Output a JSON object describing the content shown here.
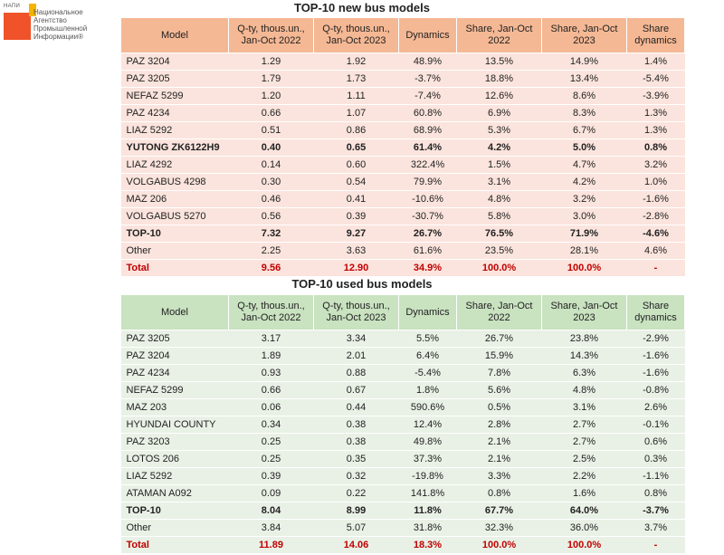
{
  "logo": {
    "small": "НАПИ",
    "lines": [
      "Национальное",
      "Агентство",
      "Промышленной",
      "Информации®"
    ]
  },
  "new_table": {
    "title": "TOP-10 new bus models",
    "headers": [
      "Model",
      "Q-ty, thous.un., Jan-Oct 2022",
      "Q-ty, thous.un., Jan-Oct 2023",
      "Dynamics",
      "Share, Jan-Oct 2022",
      "Share, Jan-Oct 2023",
      "Share dynamics"
    ],
    "rows": [
      {
        "cells": [
          "PAZ 3204",
          "1.29",
          "1.92",
          "48.9%",
          "13.5%",
          "14.9%",
          "1.4%"
        ],
        "style": ""
      },
      {
        "cells": [
          "PAZ 3205",
          "1.79",
          "1.73",
          "-3.7%",
          "18.8%",
          "13.4%",
          "-5.4%"
        ],
        "style": ""
      },
      {
        "cells": [
          "NEFAZ 5299",
          "1.20",
          "1.11",
          "-7.4%",
          "12.6%",
          "8.6%",
          "-3.9%"
        ],
        "style": ""
      },
      {
        "cells": [
          "PAZ 4234",
          "0.66",
          "1.07",
          "60.8%",
          "6.9%",
          "8.3%",
          "1.3%"
        ],
        "style": ""
      },
      {
        "cells": [
          "LIAZ 5292",
          "0.51",
          "0.86",
          "68.9%",
          "5.3%",
          "6.7%",
          "1.3%"
        ],
        "style": ""
      },
      {
        "cells": [
          "YUTONG ZK6122H9",
          "0.40",
          "0.65",
          "61.4%",
          "4.2%",
          "5.0%",
          "0.8%"
        ],
        "style": "bold"
      },
      {
        "cells": [
          "LIAZ 4292",
          "0.14",
          "0.60",
          "322.4%",
          "1.5%",
          "4.7%",
          "3.2%"
        ],
        "style": ""
      },
      {
        "cells": [
          "VOLGABUS 4298",
          "0.30",
          "0.54",
          "79.9%",
          "3.1%",
          "4.2%",
          "1.0%"
        ],
        "style": ""
      },
      {
        "cells": [
          "MAZ 206",
          "0.46",
          "0.41",
          "-10.6%",
          "4.8%",
          "3.2%",
          "-1.6%"
        ],
        "style": ""
      },
      {
        "cells": [
          "VOLGABUS 5270",
          "0.56",
          "0.39",
          "-30.7%",
          "5.8%",
          "3.0%",
          "-2.8%"
        ],
        "style": ""
      },
      {
        "cells": [
          "TOP-10",
          "7.32",
          "9.27",
          "26.7%",
          "76.5%",
          "71.9%",
          "-4.6%"
        ],
        "style": "top10"
      },
      {
        "cells": [
          "Other",
          "2.25",
          "3.63",
          "61.6%",
          "23.5%",
          "28.1%",
          "4.6%"
        ],
        "style": ""
      },
      {
        "cells": [
          "Total",
          "9.56",
          "12.90",
          "34.9%",
          "100.0%",
          "100.0%",
          "-"
        ],
        "style": "total"
      }
    ]
  },
  "used_table": {
    "title": "TOP-10 used bus models",
    "headers": [
      "Model",
      "Q-ty, thous.un., Jan-Oct 2022",
      "Q-ty, thous.un., Jan-Oct 2023",
      "Dynamics",
      "Share, Jan-Oct 2022",
      "Share, Jan-Oct 2023",
      "Share dynamics"
    ],
    "rows": [
      {
        "cells": [
          "PAZ 3205",
          "3.17",
          "3.34",
          "5.5%",
          "26.7%",
          "23.8%",
          "-2.9%"
        ],
        "style": ""
      },
      {
        "cells": [
          "PAZ 3204",
          "1.89",
          "2.01",
          "6.4%",
          "15.9%",
          "14.3%",
          "-1.6%"
        ],
        "style": ""
      },
      {
        "cells": [
          "PAZ 4234",
          "0.93",
          "0.88",
          "-5.4%",
          "7.8%",
          "6.3%",
          "-1.6%"
        ],
        "style": ""
      },
      {
        "cells": [
          "NEFAZ 5299",
          "0.66",
          "0.67",
          "1.8%",
          "5.6%",
          "4.8%",
          "-0.8%"
        ],
        "style": ""
      },
      {
        "cells": [
          "MAZ 203",
          "0.06",
          "0.44",
          "590.6%",
          "0.5%",
          "3.1%",
          "2.6%"
        ],
        "style": ""
      },
      {
        "cells": [
          "HYUNDAI COUNTY",
          "0.34",
          "0.38",
          "12.4%",
          "2.8%",
          "2.7%",
          "-0.1%"
        ],
        "style": ""
      },
      {
        "cells": [
          "PAZ 3203",
          "0.25",
          "0.38",
          "49.8%",
          "2.1%",
          "2.7%",
          "0.6%"
        ],
        "style": ""
      },
      {
        "cells": [
          "LOTOS 206",
          "0.25",
          "0.35",
          "37.3%",
          "2.1%",
          "2.5%",
          "0.3%"
        ],
        "style": ""
      },
      {
        "cells": [
          "LIAZ 5292",
          "0.39",
          "0.32",
          "-19.8%",
          "3.3%",
          "2.2%",
          "-1.1%"
        ],
        "style": ""
      },
      {
        "cells": [
          "ATAMAN A092",
          "0.09",
          "0.22",
          "141.8%",
          "0.8%",
          "1.6%",
          "0.8%"
        ],
        "style": ""
      },
      {
        "cells": [
          "TOP-10",
          "8.04",
          "8.99",
          "11.8%",
          "67.7%",
          "64.0%",
          "-3.7%"
        ],
        "style": "top10"
      },
      {
        "cells": [
          "Other",
          "3.84",
          "5.07",
          "31.8%",
          "32.3%",
          "36.0%",
          "3.7%"
        ],
        "style": ""
      },
      {
        "cells": [
          "Total",
          "11.89",
          "14.06",
          "18.3%",
          "100.0%",
          "100.0%",
          "-"
        ],
        "style": "total"
      }
    ]
  }
}
